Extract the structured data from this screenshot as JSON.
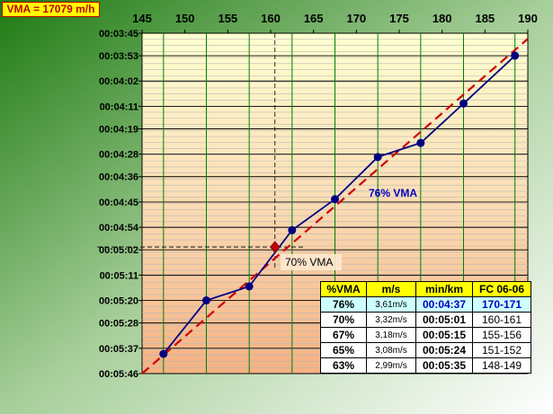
{
  "vma_label": "VMA = 17079 m/h",
  "colors": {
    "bg_gradient_start": "#1e7a12",
    "bg_gradient_end": "#ffffff",
    "plot_top": "#ffffd0",
    "plot_bottom": "#f4b183",
    "series_line": "#000080",
    "trend_line": "#d00000",
    "vertical_guides": "#008000",
    "highlight_marker": "#c00000"
  },
  "chart_data": {
    "type": "line",
    "x_ticks": [
      145,
      150,
      155,
      160,
      165,
      170,
      175,
      180,
      185,
      190
    ],
    "xlim": [
      145,
      190
    ],
    "y_tick_labels": [
      "00:03:45",
      "00:03:53",
      "00:04:02",
      "00:04:11",
      "00:04:19",
      "00:04:28",
      "00:04:36",
      "00:04:45",
      "00:04:54",
      "00:05:02",
      "00:05:11",
      "00:05:20",
      "00:05:28",
      "00:05:37",
      "00:05:46"
    ],
    "y_axis_inverted": true,
    "ylim_labels": [
      "00:03:45",
      "00:05:46"
    ],
    "series": [
      {
        "points": [
          {
            "x": 147.5,
            "y": "00:05:39"
          },
          {
            "x": 152.5,
            "y": "00:05:20"
          },
          {
            "x": 157.5,
            "y": "00:05:15"
          },
          {
            "x": 162.5,
            "y": "00:04:55"
          },
          {
            "x": 167.5,
            "y": "00:04:44"
          },
          {
            "x": 172.5,
            "y": "00:04:29"
          },
          {
            "x": 177.5,
            "y": "00:04:24"
          },
          {
            "x": 182.5,
            "y": "00:04:10"
          },
          {
            "x": 188.5,
            "y": "00:03:53"
          }
        ]
      }
    ],
    "trendline": {
      "style": "dashed",
      "from": {
        "x": 145,
        "y": "00:05:46"
      },
      "to": {
        "x": 190,
        "y": "00:03:47"
      }
    },
    "highlight_point": {
      "x": 160.5,
      "y": "00:05:01",
      "label": "70% VMA"
    },
    "annotation": {
      "text": "76% VMA"
    },
    "grid": true,
    "table": {
      "headers": [
        "%VMA",
        "m/s",
        "min/km",
        "FC 06-06"
      ],
      "rows": [
        {
          "pct": "76%",
          "ms": "3,61m/s",
          "pace": "00:04:37",
          "fc": "170-171",
          "highlight": true
        },
        {
          "pct": "70%",
          "ms": "3,32m/s",
          "pace": "00:05:01",
          "fc": "160-161",
          "highlight": false
        },
        {
          "pct": "67%",
          "ms": "3,18m/s",
          "pace": "00:05:15",
          "fc": "155-156",
          "highlight": false
        },
        {
          "pct": "65%",
          "ms": "3,08m/s",
          "pace": "00:05:24",
          "fc": "151-152",
          "highlight": false
        },
        {
          "pct": "63%",
          "ms": "2,99m/s",
          "pace": "00:05:35",
          "fc": "148-149",
          "highlight": false
        }
      ]
    }
  }
}
